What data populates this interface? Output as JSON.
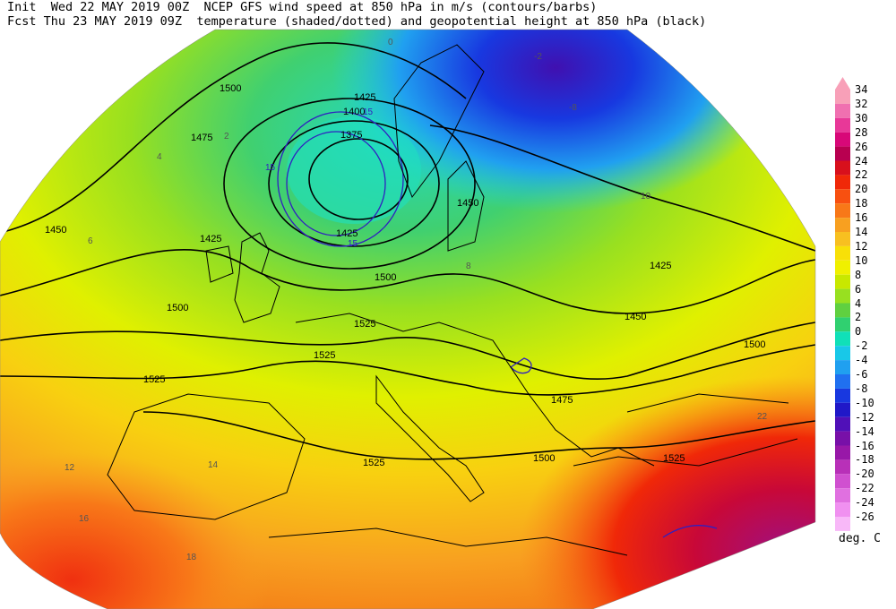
{
  "header": {
    "line1": "Init  Wed 22 MAY 2019 00Z  NCEP GFS wind speed at 850 hPa in m/s (contours/barbs)",
    "line2": "Fcst Thu 23 MAY 2019 09Z  temperature (shaded/dotted) and geopotential height at 850 hPa (black)"
  },
  "colorbar": {
    "labels": [
      "34",
      "32",
      "30",
      "28",
      "26",
      "24",
      "22",
      "20",
      "18",
      "16",
      "14",
      "12",
      "10",
      "8",
      "6",
      "4",
      "2",
      "0",
      "-2",
      "-4",
      "-6",
      "-8",
      "-10",
      "-12",
      "-14",
      "-16",
      "-18",
      "-20",
      "-22",
      "-24",
      "-26"
    ],
    "colors": [
      "#f8a0b8",
      "#f070b0",
      "#e83898",
      "#d80878",
      "#b80050",
      "#d8101c",
      "#f02808",
      "#f85010",
      "#f87818",
      "#f8a020",
      "#f8c020",
      "#f8e008",
      "#f0f000",
      "#c8e800",
      "#98e020",
      "#60d040",
      "#30d070",
      "#10e0b8",
      "#18c8e8",
      "#20a0f0",
      "#2070f0",
      "#1838e0",
      "#2018c8",
      "#5010b8",
      "#7810a8",
      "#9818a8",
      "#b830b8",
      "#d050d0",
      "#e070e0",
      "#f090f0",
      "#f8b8f8"
    ],
    "units": "deg. C"
  },
  "map": {
    "height_labels": [
      "1500",
      "1425",
      "1400",
      "1375",
      "1475",
      "1450",
      "1425",
      "1425",
      "1500",
      "1525",
      "1525",
      "1525",
      "1525",
      "1450",
      "1425",
      "1500",
      "1475",
      "1500",
      "1525",
      "1500",
      "1450"
    ],
    "temp_labels": [
      "4",
      "6",
      "8",
      "10",
      "12",
      "14",
      "16",
      "18",
      "22",
      "-2",
      "-8",
      "0",
      "2"
    ],
    "wind_labels": [
      "15",
      "15",
      "15"
    ]
  }
}
